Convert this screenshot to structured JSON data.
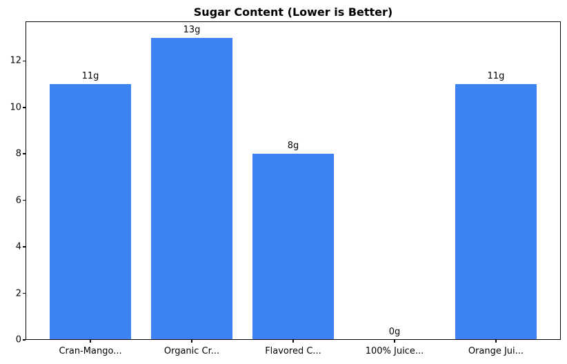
{
  "chart_data": {
    "type": "bar",
    "title": "Sugar Content (Lower is Better)",
    "categories": [
      "Cran-Mango...",
      "Organic Cr...",
      "Flavored C...",
      "100% Juice...",
      "Orange Jui..."
    ],
    "values": [
      11,
      13,
      8,
      0,
      11
    ],
    "value_labels": [
      "11g",
      "13g",
      "8g",
      "0g",
      "11g"
    ],
    "xlabel": "",
    "ylabel": "",
    "yticks": [
      0,
      2,
      4,
      6,
      8,
      10,
      12
    ],
    "ylim": [
      0,
      13.7
    ],
    "xlim": [
      -0.64,
      4.64
    ],
    "bar_width": 0.8,
    "grid": false,
    "legend": "none",
    "bar_color": "#3d82f5",
    "background_color": "#ffffff",
    "axis_color": "#000000",
    "text_color": "#000000"
  }
}
